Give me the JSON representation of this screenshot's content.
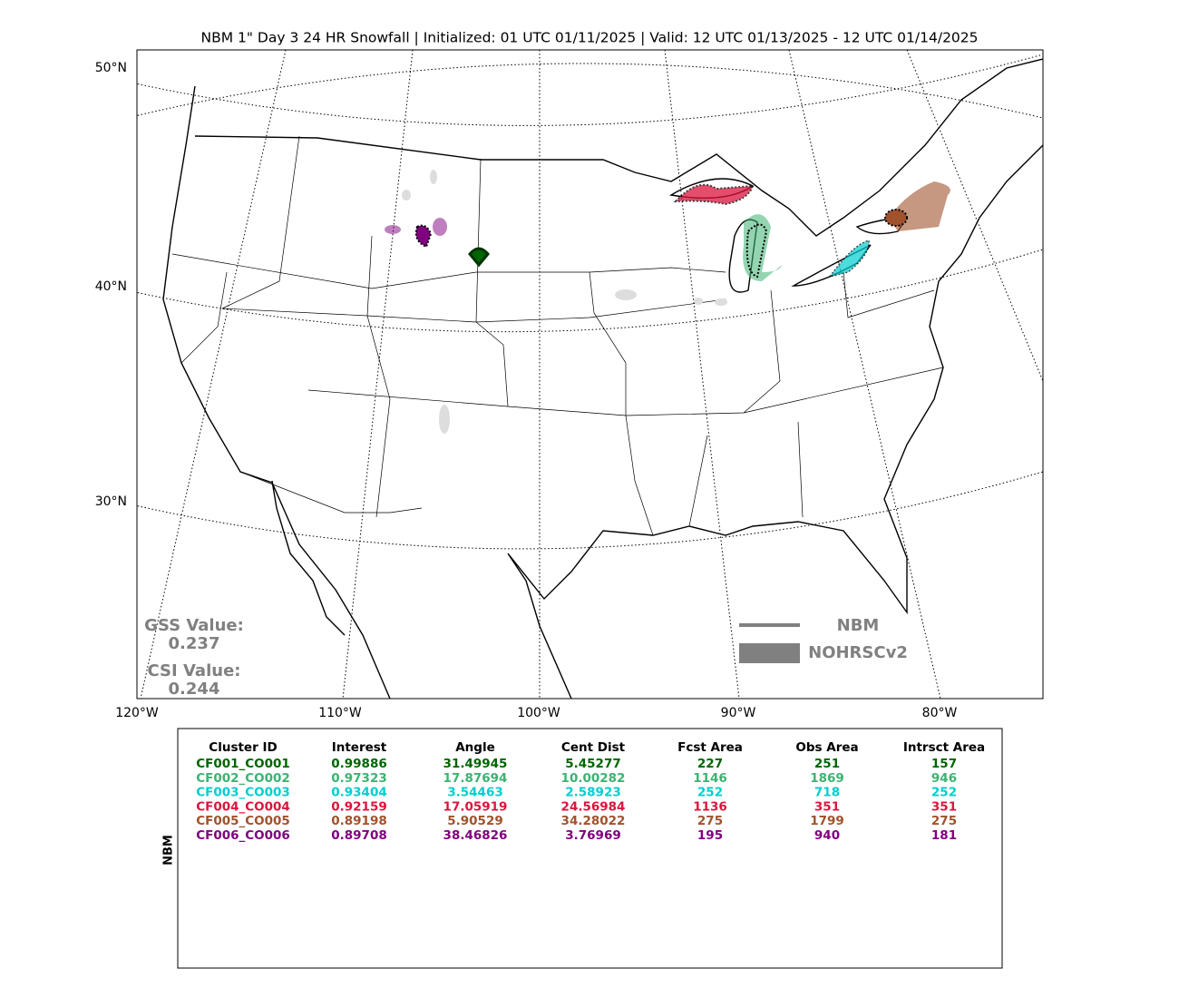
{
  "title": "NBM 1\" Day 3 24 HR Snowfall | Initialized: 01 UTC 01/11/2025 | Valid: 12 UTC 01/13/2025 - 12 UTC 01/14/2025",
  "map": {
    "lat_labels": [
      "50°N",
      "40°N",
      "30°N"
    ],
    "lon_labels": [
      "120°W",
      "110°W",
      "100°W",
      "90°W",
      "80°W"
    ],
    "scores": [
      {
        "label": "GSS Value:",
        "value": 0.237
      },
      {
        "label": "CSI Value:",
        "value": 0.244
      }
    ],
    "legend": [
      "NBM",
      "NOHRSCv2"
    ]
  },
  "table": {
    "side_label": "NBM",
    "columns": [
      "Cluster ID",
      "Interest",
      "Angle",
      "Cent Dist",
      "Fcst Area",
      "Obs Area",
      "Intrsct Area"
    ],
    "row_colors": [
      "#006400",
      "#3cb371",
      "#00ced1",
      "#dc143c",
      "#a0522d",
      "#800080"
    ],
    "rows": [
      [
        "CF001_CO001",
        0.99886,
        31.49945,
        5.45277,
        227,
        251,
        157
      ],
      [
        "CF002_CO002",
        0.97323,
        17.87694,
        10.00282,
        1146,
        1869,
        946
      ],
      [
        "CF003_CO003",
        0.93404,
        3.54463,
        2.58923,
        252,
        718,
        252
      ],
      [
        "CF004_CO004",
        0.92159,
        17.05919,
        24.56984,
        1136,
        351,
        351
      ],
      [
        "CF005_CO005",
        0.89198,
        5.90529,
        34.28022,
        275,
        1799,
        275
      ],
      [
        "CF006_CO006",
        0.89708,
        38.46826,
        3.76969,
        195,
        940,
        181
      ]
    ]
  }
}
